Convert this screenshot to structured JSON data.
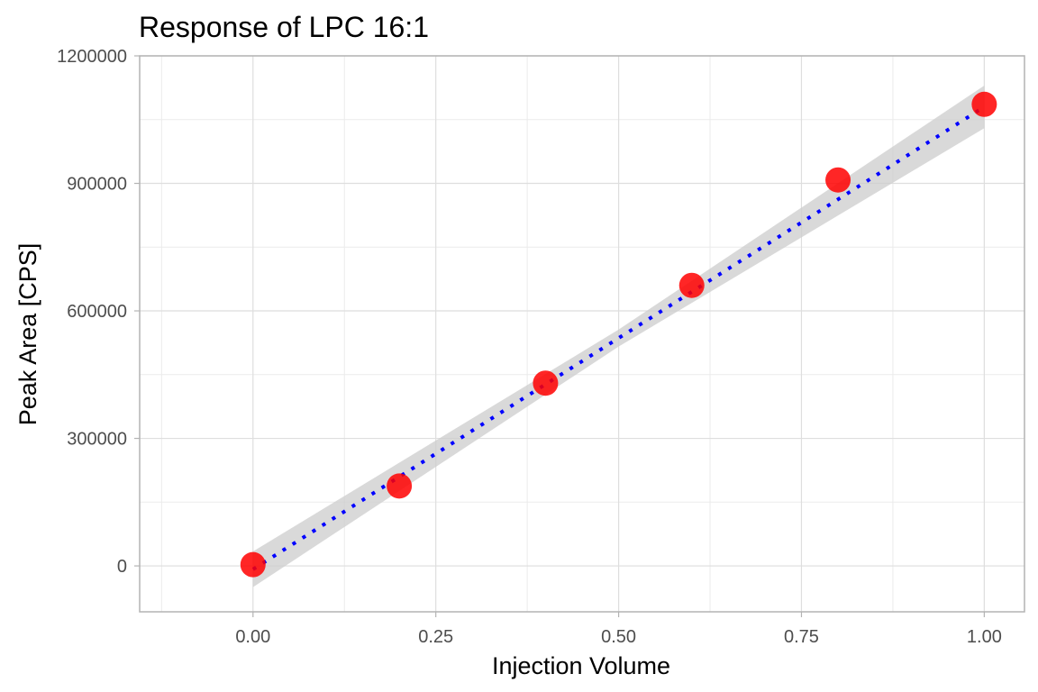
{
  "chart_data": {
    "type": "scatter",
    "title": "Response of LPC 16:1",
    "xlabel": "Injection Volume",
    "ylabel": "Peak Area [CPS]",
    "xlim": [
      -0.155,
      1.055
    ],
    "ylim": [
      -108000,
      1200000
    ],
    "x_ticks": [
      0.0,
      0.25,
      0.5,
      0.75,
      1.0
    ],
    "x_tick_labels": [
      "0.00",
      "0.25",
      "0.50",
      "0.75",
      "1.00"
    ],
    "y_ticks": [
      0,
      300000,
      600000,
      900000,
      1200000
    ],
    "y_tick_labels": [
      "0",
      "300000",
      "600000",
      "900000",
      "1200000"
    ],
    "grid": true,
    "series": [
      {
        "kind": "points",
        "color": "#ff0000",
        "x": [
          0.0,
          0.2,
          0.4,
          0.6,
          0.8,
          1.0
        ],
        "y": [
          3000,
          188000,
          430000,
          660000,
          908000,
          1086000
        ]
      },
      {
        "kind": "fit-line",
        "color": "#0000ff",
        "line_style": "dotted",
        "x": [
          0.0,
          1.0
        ],
        "y": [
          -8000,
          1080000
        ]
      },
      {
        "kind": "confidence-band",
        "color": "#cccccc",
        "x": [
          0.0,
          0.5,
          1.0
        ],
        "lower": [
          -50000,
          516000,
          1030000
        ],
        "upper": [
          34000,
          556000,
          1130000
        ]
      }
    ]
  }
}
